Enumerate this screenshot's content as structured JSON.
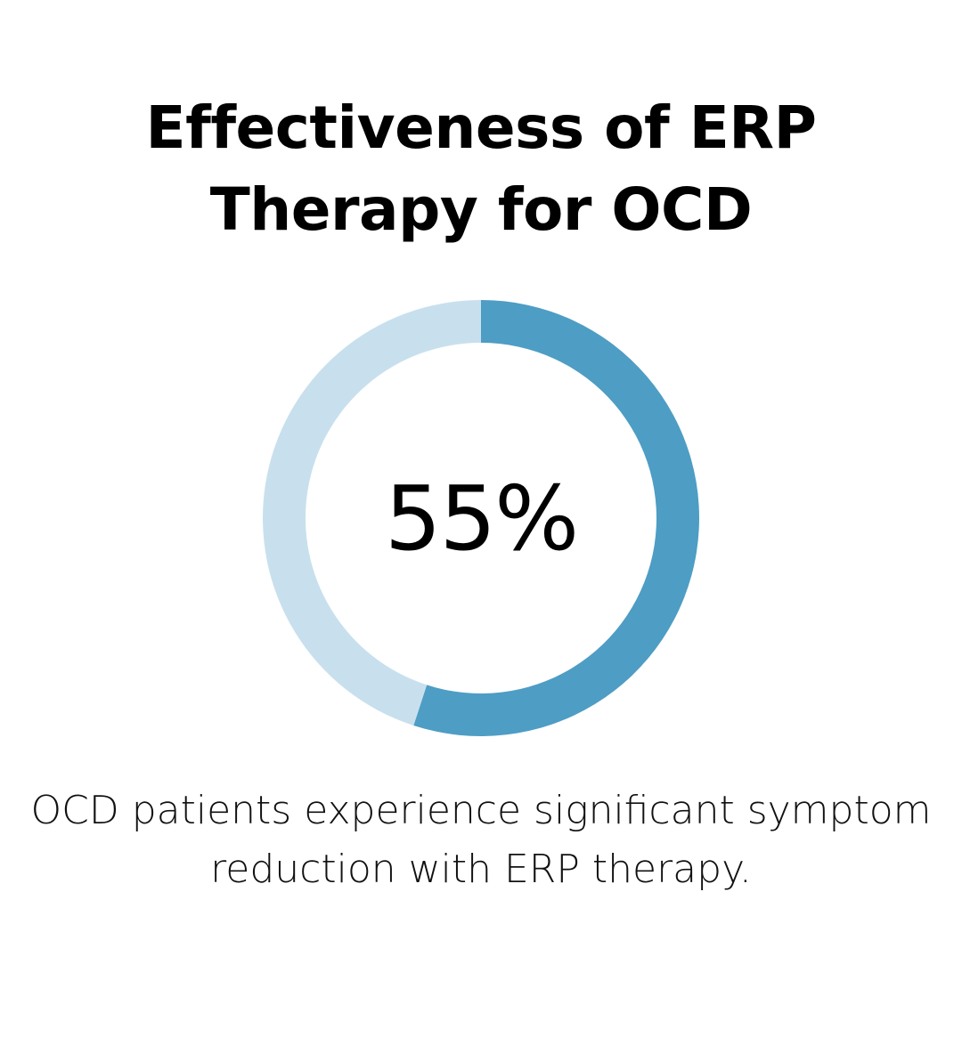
{
  "title": {
    "line1": "Effectiveness of ERP",
    "line2": "Therapy for OCD"
  },
  "chart_data": {
    "type": "pie",
    "variant": "donut",
    "values": [
      55,
      45
    ],
    "center_label": "55%",
    "colors": {
      "value": "#4e9dc4",
      "remainder": "#c8e0ed"
    }
  },
  "caption": {
    "line1": "OCD patients experience significant symptom",
    "line2": "reduction with ERP therapy."
  }
}
